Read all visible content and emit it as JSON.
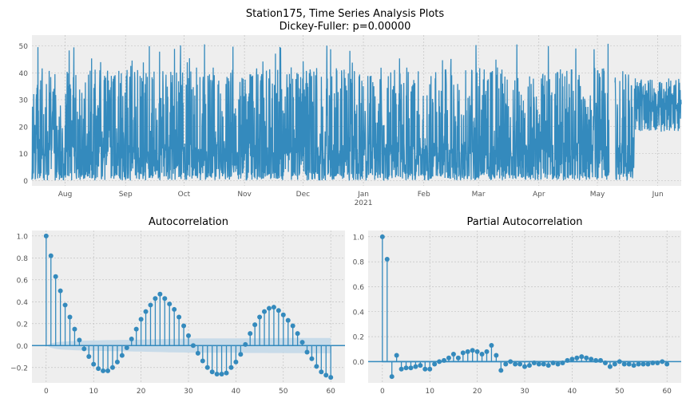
{
  "figure": {
    "title_line1": "Station175, Time Series Analysis Plots",
    "title_line2": "Dickey-Fuller: p=0.00000"
  },
  "colors": {
    "series": "#348ABD",
    "axes_bg": "#EEEEEE",
    "grid": "#BBBBBB",
    "confidence": "#C3D8E8"
  },
  "chart_data": [
    {
      "type": "line",
      "x_unit": "date",
      "x_start": "2020-07-15",
      "x_end": "2021-06-13",
      "y_min_observed": 0,
      "y_max_observed": 51,
      "ylim": [
        -2,
        54
      ],
      "yticks": [
        0,
        10,
        20,
        30,
        40,
        50
      ],
      "xtick_labels": [
        "Aug",
        "Sep",
        "Oct",
        "Nov",
        "Dec",
        "Jan",
        "Feb",
        "Mar",
        "Apr",
        "May",
        "Jun"
      ],
      "xtick_dates": [
        "2020-08-01",
        "2020-09-01",
        "2020-10-01",
        "2020-11-01",
        "2020-12-01",
        "2021-01-01",
        "2021-02-01",
        "2021-03-01",
        "2021-04-01",
        "2021-05-01",
        "2021-06-01"
      ],
      "xtick_year_label": "2021",
      "grid": true
    },
    {
      "type": "stem",
      "title": "Autocorrelation",
      "x": [
        0,
        1,
        2,
        3,
        4,
        5,
        6,
        7,
        8,
        9,
        10,
        11,
        12,
        13,
        14,
        15,
        16,
        17,
        18,
        19,
        20,
        21,
        22,
        23,
        24,
        25,
        26,
        27,
        28,
        29,
        30,
        31,
        32,
        33,
        34,
        35,
        36,
        37,
        38,
        39,
        40,
        41,
        42,
        43,
        44,
        45,
        46,
        47,
        48,
        49,
        50,
        51,
        52,
        53,
        54,
        55,
        56,
        57,
        58,
        59,
        60
      ],
      "values": [
        1.0,
        0.82,
        0.63,
        0.5,
        0.37,
        0.26,
        0.15,
        0.05,
        -0.03,
        -0.1,
        -0.17,
        -0.21,
        -0.23,
        -0.23,
        -0.2,
        -0.15,
        -0.09,
        -0.02,
        0.06,
        0.15,
        0.24,
        0.31,
        0.37,
        0.43,
        0.47,
        0.43,
        0.38,
        0.33,
        0.26,
        0.18,
        0.09,
        0.0,
        -0.07,
        -0.14,
        -0.2,
        -0.24,
        -0.26,
        -0.26,
        -0.25,
        -0.2,
        -0.15,
        -0.08,
        0.01,
        0.11,
        0.19,
        0.26,
        0.31,
        0.34,
        0.35,
        0.32,
        0.28,
        0.23,
        0.18,
        0.11,
        0.03,
        -0.06,
        -0.12,
        -0.19,
        -0.24,
        -0.27,
        -0.29
      ],
      "confidence_upper": [
        0.0,
        0.02,
        0.03,
        0.035,
        0.038,
        0.04,
        0.042,
        0.044,
        0.045,
        0.046,
        0.047,
        0.048,
        0.049,
        0.05,
        0.05,
        0.051,
        0.052,
        0.052,
        0.053,
        0.054,
        0.055,
        0.056,
        0.057,
        0.058,
        0.059,
        0.06,
        0.061,
        0.062,
        0.063,
        0.063,
        0.064,
        0.064,
        0.065,
        0.065,
        0.065,
        0.066,
        0.066,
        0.066,
        0.066,
        0.066,
        0.066,
        0.066,
        0.067,
        0.067,
        0.067,
        0.067,
        0.067,
        0.068,
        0.068,
        0.068,
        0.068,
        0.069,
        0.069,
        0.069,
        0.069,
        0.07,
        0.07,
        0.07,
        0.07,
        0.07,
        0.07
      ],
      "xlim": [
        -3,
        63
      ],
      "ylim": [
        -0.34,
        1.05
      ],
      "xticks": [
        0,
        10,
        20,
        30,
        40,
        50,
        60
      ],
      "yticks": [
        -0.2,
        0.0,
        0.2,
        0.4,
        0.6,
        0.8,
        1.0
      ],
      "ytick_labels": [
        "−0.2",
        "0.0",
        "0.2",
        "0.4",
        "0.6",
        "0.8",
        "1.0"
      ],
      "grid": true
    },
    {
      "type": "stem",
      "title": "Partial Autocorrelation",
      "x": [
        0,
        1,
        2,
        3,
        4,
        5,
        6,
        7,
        8,
        9,
        10,
        11,
        12,
        13,
        14,
        15,
        16,
        17,
        18,
        19,
        20,
        21,
        22,
        23,
        24,
        25,
        26,
        27,
        28,
        29,
        30,
        31,
        32,
        33,
        34,
        35,
        36,
        37,
        38,
        39,
        40,
        41,
        42,
        43,
        44,
        45,
        46,
        47,
        48,
        49,
        50,
        51,
        52,
        53,
        54,
        55,
        56,
        57,
        58,
        59,
        60
      ],
      "values": [
        1.0,
        0.82,
        -0.12,
        0.05,
        -0.06,
        -0.05,
        -0.05,
        -0.04,
        -0.03,
        -0.06,
        -0.06,
        -0.02,
        0.0,
        0.01,
        0.03,
        0.06,
        0.03,
        0.07,
        0.08,
        0.09,
        0.08,
        0.06,
        0.08,
        0.13,
        0.05,
        -0.07,
        -0.02,
        0.0,
        -0.02,
        -0.02,
        -0.04,
        -0.03,
        -0.01,
        -0.02,
        -0.02,
        -0.03,
        -0.01,
        -0.02,
        -0.01,
        0.01,
        0.02,
        0.03,
        0.04,
        0.03,
        0.02,
        0.01,
        0.01,
        -0.01,
        -0.04,
        -0.02,
        0.0,
        -0.02,
        -0.02,
        -0.03,
        -0.02,
        -0.02,
        -0.02,
        -0.01,
        -0.01,
        0.0,
        -0.02
      ],
      "confidence_upper": 0.01,
      "xlim": [
        -3,
        63
      ],
      "ylim": [
        -0.17,
        1.05
      ],
      "xticks": [
        0,
        10,
        20,
        30,
        40,
        50,
        60
      ],
      "yticks": [
        0.0,
        0.2,
        0.4,
        0.6,
        0.8,
        1.0
      ],
      "ytick_labels": [
        "0.0",
        "0.2",
        "0.4",
        "0.6",
        "0.8",
        "1.0"
      ],
      "grid": true
    }
  ]
}
